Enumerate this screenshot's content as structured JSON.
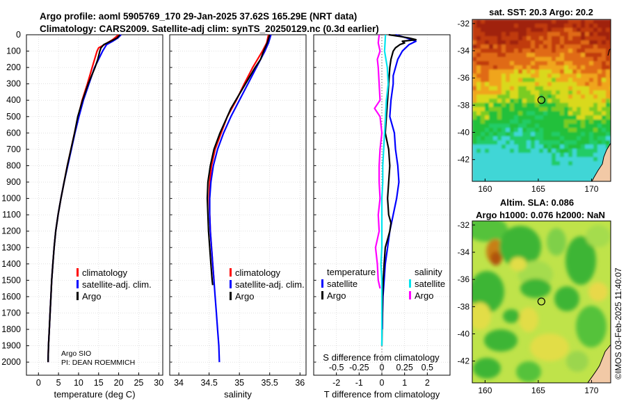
{
  "title": {
    "line1": "Argo profile: aoml 5905769_170 29-Jan-2025 37.62S 165.29E (NRT data)",
    "line2": "Climatology: CARS2009. Satellite-adj clim: synTS_20250129.nc (0.3d earlier)"
  },
  "credit": {
    "line1": "Argo SIO",
    "line2": "PI: DEAN ROEMMICH"
  },
  "timestamp": "©IMOS 03-Feb-2025 11:40:07",
  "colors": {
    "climatology": "#ff0000",
    "satellite": "#0000ff",
    "argo": "#000000",
    "sat_salinity": "#00e5ee",
    "argo_salinity": "#ff00ff"
  },
  "chart_data": [
    {
      "type": "line",
      "name": "temperature_profile",
      "xlabel": "temperature (deg C)",
      "ylabel": "",
      "xlim": [
        -3,
        31
      ],
      "ylim": [
        2080,
        0
      ],
      "xticks": [
        "0",
        "5",
        "10",
        "15",
        "20",
        "25",
        "30"
      ],
      "yticks": [
        "0",
        "100",
        "200",
        "300",
        "400",
        "500",
        "600",
        "700",
        "800",
        "900",
        "1000",
        "1100",
        "1200",
        "1300",
        "1400",
        "1500",
        "1600",
        "1700",
        "1800",
        "1900",
        "2000"
      ],
      "legend": [
        "climatology",
        "satellite-adj. clim.",
        "Argo"
      ],
      "series": [
        {
          "name": "climatology",
          "depth": [
            0,
            30,
            60,
            80,
            100,
            150,
            200,
            300,
            400,
            500,
            600,
            700,
            800,
            900,
            1000,
            1100,
            1200,
            1300,
            1400,
            1500,
            1600,
            1700,
            1800,
            1900,
            2000
          ],
          "values": [
            20.0,
            18.5,
            16.5,
            15.0,
            14.6,
            14.0,
            13.4,
            12.2,
            10.9,
            9.9,
            9.0,
            8.1,
            7.2,
            6.4,
            5.6,
            4.9,
            4.3,
            3.9,
            3.6,
            3.3,
            3.1,
            2.9,
            2.7,
            2.5,
            2.4
          ]
        },
        {
          "name": "satellite-adj. clim.",
          "depth": [
            0,
            20,
            40,
            60,
            100,
            150,
            200,
            300,
            400,
            500,
            600,
            700,
            800,
            900,
            1000,
            1100,
            1200,
            1300,
            1400,
            1500,
            1600,
            1700,
            1800,
            1900,
            2000
          ],
          "values": [
            20.6,
            19.8,
            18.5,
            17.0,
            16.0,
            15.0,
            14.0,
            12.6,
            11.2,
            10.1,
            9.1,
            8.2,
            7.3,
            6.4,
            5.6,
            4.9,
            4.3,
            3.9,
            3.6,
            3.3,
            3.1,
            2.9,
            2.7,
            2.5,
            2.4
          ]
        },
        {
          "name": "Argo",
          "depth": [
            0,
            20,
            40,
            60,
            80,
            100,
            150,
            200,
            300,
            400,
            500,
            600,
            700,
            800,
            900,
            1000,
            1100,
            1200,
            1300,
            1400,
            1500,
            1600,
            1700,
            1800,
            1900,
            2000
          ],
          "values": [
            20.3,
            19.6,
            18.0,
            16.3,
            15.6,
            15.3,
            14.8,
            14.1,
            12.4,
            11.0,
            9.8,
            9.0,
            8.1,
            7.2,
            6.4,
            5.6,
            4.9,
            4.3,
            3.9,
            3.6,
            3.3,
            3.1,
            2.9,
            2.7,
            2.5,
            2.4
          ]
        }
      ]
    },
    {
      "type": "line",
      "name": "salinity_profile",
      "xlabel": "salinity",
      "xlim": [
        33.85,
        36.1
      ],
      "ylim": [
        2080,
        0
      ],
      "xticks": [
        "34",
        "34.5",
        "35",
        "35.5",
        "36"
      ],
      "legend": [
        "climatology",
        "satellite-adj. clim.",
        "Argo"
      ],
      "series": [
        {
          "name": "climatology",
          "depth": [
            0,
            50,
            100,
            200,
            300,
            400,
            500,
            600,
            700,
            800,
            900,
            1000,
            1100,
            1200,
            1300,
            1400,
            1500
          ],
          "values": [
            35.48,
            35.45,
            35.38,
            35.22,
            35.08,
            34.95,
            34.8,
            34.7,
            34.6,
            34.54,
            34.51,
            34.5,
            34.51,
            34.52,
            34.54,
            34.56,
            34.58
          ]
        },
        {
          "name": "satellite-adj. clim.",
          "depth": [
            0,
            50,
            100,
            200,
            300,
            400,
            500,
            600,
            700,
            800,
            900,
            1000,
            1100,
            1200,
            1300,
            1400,
            1500,
            1600,
            1700,
            1800,
            1900,
            2000
          ],
          "values": [
            35.52,
            35.48,
            35.42,
            35.28,
            35.14,
            35.0,
            34.86,
            34.74,
            34.64,
            34.57,
            34.53,
            34.51,
            34.51,
            34.52,
            34.54,
            34.56,
            34.58,
            34.6,
            34.62,
            34.64,
            34.66,
            34.67
          ]
        },
        {
          "name": "Argo",
          "depth": [
            0,
            50,
            100,
            150,
            200,
            300,
            400,
            450,
            500,
            600,
            700,
            800,
            900,
            1000,
            1100,
            1200,
            1300,
            1400,
            1500,
            1530
          ],
          "values": [
            35.5,
            35.46,
            35.4,
            35.35,
            35.26,
            35.1,
            34.94,
            34.86,
            34.8,
            34.68,
            34.58,
            34.52,
            34.48,
            34.47,
            34.48,
            34.49,
            34.51,
            34.53,
            34.55,
            34.56
          ]
        }
      ]
    },
    {
      "type": "line",
      "name": "difference_profile",
      "xlabel": "T difference from climatology",
      "xlabel_top": "S difference from climatology",
      "xlim": [
        -3.0,
        3.0
      ],
      "ylim": [
        2080,
        0
      ],
      "xticks": [
        "-2",
        "-1",
        "0",
        "1",
        "2"
      ],
      "xticks_s": [
        "-0.5",
        "-0.25",
        "0",
        "0.25",
        "0.5"
      ],
      "legend_temperature": {
        "title": "temperature",
        "items": [
          "satellite",
          "Argo"
        ]
      },
      "legend_salinity": {
        "title": "salinity",
        "items": [
          "satellite",
          "Argo"
        ]
      },
      "series": [
        {
          "name": "T satellite",
          "depth": [
            0,
            20,
            40,
            60,
            100,
            150,
            200,
            250,
            300,
            400,
            500,
            600,
            700,
            800,
            900,
            1000,
            1100,
            1200,
            1300,
            1400,
            1500,
            1600,
            1700,
            1800
          ],
          "values": [
            0.6,
            1.1,
            1.5,
            1.2,
            0.9,
            0.7,
            0.6,
            0.5,
            0.5,
            0.4,
            0.35,
            0.55,
            0.6,
            0.7,
            0.75,
            0.65,
            0.5,
            0.35,
            0.25,
            0.15,
            0.1,
            0.05,
            0.03,
            0.02
          ]
        },
        {
          "name": "T Argo",
          "depth": [
            0,
            10,
            20,
            30,
            40,
            50,
            60,
            80,
            100,
            150,
            200,
            300,
            400,
            500,
            600,
            700,
            800,
            900,
            1000,
            1100,
            1150,
            1200,
            1250,
            1300,
            1400,
            1500,
            1600,
            1700,
            1800,
            1900
          ],
          "values": [
            0.3,
            0.8,
            1.2,
            1.5,
            0.9,
            1.0,
            0.8,
            0.6,
            0.5,
            0.4,
            0.35,
            0.3,
            0.25,
            0.2,
            0.15,
            0.3,
            0.35,
            0.3,
            0.25,
            0.3,
            0.4,
            0.35,
            0.25,
            0.15,
            0.1,
            0.06,
            0.03,
            0.02,
            0.01,
            0.0
          ]
        },
        {
          "name": "S satellite",
          "depth": [
            0,
            100,
            200,
            300,
            400,
            500,
            600,
            700,
            800,
            900,
            1000,
            1100,
            1200,
            1300,
            1400,
            1500,
            1600,
            1700,
            1800,
            1900
          ],
          "values": [
            0.04,
            0.03,
            0.06,
            0.07,
            0.05,
            0.04,
            0.03,
            0.02,
            0.01,
            0.01,
            0.0,
            0.0,
            0.0,
            0.0,
            -0.01,
            0.0,
            0.0,
            0.0,
            0.0,
            0.0
          ]
        },
        {
          "name": "S Argo",
          "depth": [
            0,
            50,
            100,
            150,
            200,
            300,
            400,
            450,
            500,
            600,
            700,
            800,
            900,
            1000,
            1100,
            1200,
            1300,
            1400,
            1500,
            1550
          ],
          "values": [
            -0.03,
            -0.04,
            -0.02,
            -0.05,
            -0.04,
            -0.03,
            -0.02,
            -0.08,
            -0.02,
            0.0,
            -0.02,
            -0.03,
            -0.03,
            -0.02,
            -0.04,
            -0.03,
            -0.07,
            -0.05,
            -0.04,
            -0.02
          ]
        }
      ]
    },
    {
      "type": "heatmap",
      "name": "sst_map",
      "title": "sat. SST: 20.3 Argo: 20.2",
      "xticks": [
        "160",
        "165",
        "170"
      ],
      "yticks": [
        "-32",
        "-34",
        "-36",
        "-38",
        "-40",
        "-42"
      ],
      "xlim": [
        158.8,
        171.8
      ],
      "ylim": [
        -43.6,
        -31.7
      ],
      "marker": {
        "lon": 165.29,
        "lat": -37.62
      }
    },
    {
      "type": "heatmap",
      "name": "sla_map",
      "title1": "Altim. SLA: 0.086",
      "title2": "Argo h1000: 0.076 h2000: NaN",
      "xticks": [
        "160",
        "165",
        "170"
      ],
      "yticks": [
        "-32",
        "-34",
        "-36",
        "-38",
        "-40",
        "-42"
      ],
      "xlim": [
        158.8,
        171.8
      ],
      "ylim": [
        -43.6,
        -31.7
      ],
      "marker": {
        "lon": 165.29,
        "lat": -37.62
      }
    }
  ]
}
